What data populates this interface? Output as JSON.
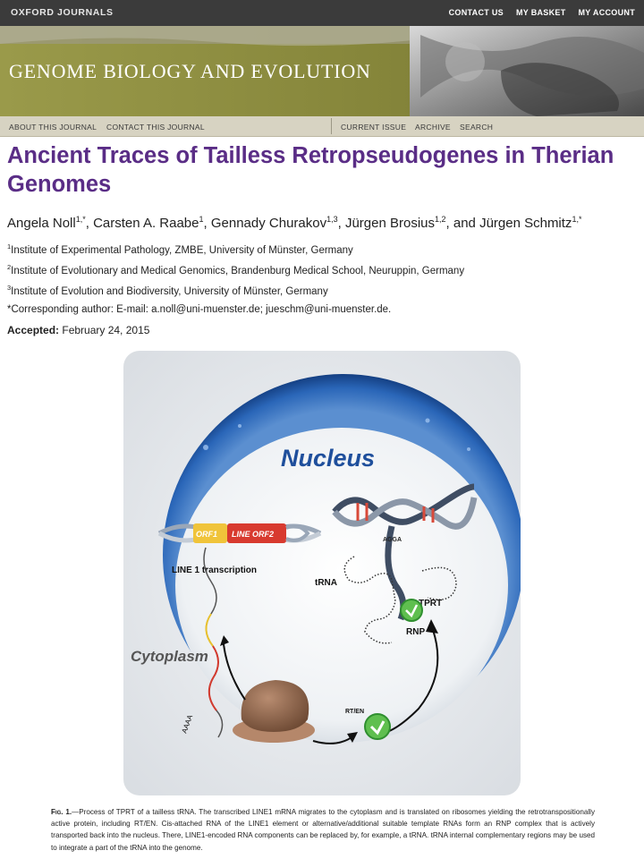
{
  "header": {
    "brand": "OXFORD JOURNALS",
    "links": [
      "CONTACT US",
      "MY BASKET",
      "MY ACCOUNT"
    ],
    "journal_name": "GENOME BIOLOGY AND EVOLUTION"
  },
  "nav": {
    "about": "ABOUT THIS JOURNAL",
    "contact": "CONTACT THIS JOURNAL",
    "current": "CURRENT ISSUE",
    "archive": "ARCHIVE",
    "search": "SEARCH"
  },
  "article": {
    "title": "Ancient Traces of Tailless Retropseudogenes in Therian Genomes",
    "authors": [
      {
        "name": "Angela Noll",
        "sup": "1,*"
      },
      {
        "name": "Carsten A. Raabe",
        "sup": "1"
      },
      {
        "name": "Gennady Churakov",
        "sup": "1,3"
      },
      {
        "name": "Jürgen Brosius",
        "sup": "1,2"
      },
      {
        "name": "Jürgen Schmitz",
        "sup": "1,*"
      }
    ],
    "affiliations": [
      {
        "num": "1",
        "text": "Institute of Experimental Pathology, ZMBE, University of Münster, Germany"
      },
      {
        "num": "2",
        "text": "Institute of Evolutionary and Medical Genomics, Brandenburg Medical School, Neuruppin, Germany"
      },
      {
        "num": "3",
        "text": "Institute of Evolution and Biodiversity, University of Münster, Germany"
      }
    ],
    "corresponding": "*Corresponding author: E-mail: a.noll@uni-muenster.de; jueschm@uni-muenster.de.",
    "accepted_label": "Accepted:",
    "accepted_date": "February 24, 2015"
  },
  "figure": {
    "labels": {
      "nucleus": "Nucleus",
      "cytoplasm": "Cytoplasm",
      "orf1": "ORF1",
      "orf2": "LINE ORF2",
      "line1": "LINE 1 transcription",
      "trna": "tRNA",
      "tprt": "TPRT",
      "rnp": "RNP",
      "rten": "RT/EN",
      "agga": "AGGA",
      "polya": "AAAA"
    },
    "caption_label": "Fig. 1.",
    "caption_text": "—Process of TPRT of a tailless tRNA. The transcribed LINE1 mRNA migrates to the cytoplasm and is translated on ribosomes yielding the retrotranspositionally active protein, including RT/EN. Cis-attached RNA of the LINE1 element or alternative/additional suitable template RNAs form an RNP complex that is actively transported back into the nucleus. There, LINE1-encoded RNA components can be replaced by, for example, a tRNA. tRNA internal complementary regions may be used to integrate a part of the tRNA into the genome."
  },
  "colors": {
    "title": "#5a2d86",
    "banner": "#8d8d3e",
    "nucleus_blue": "#1d5fb0"
  }
}
